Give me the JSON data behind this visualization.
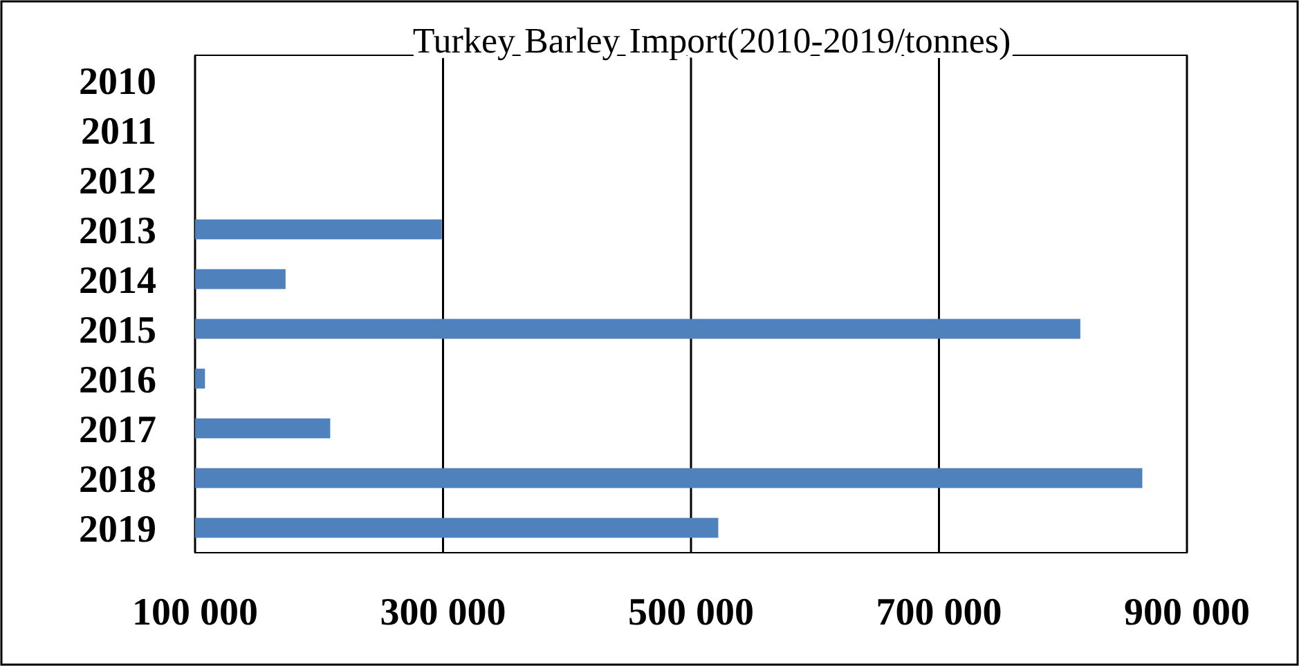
{
  "chart_data": {
    "type": "bar",
    "orientation": "horizontal",
    "title": "Turkey Barley Import(2010-2019/tonnes)",
    "categories": [
      "2010",
      "2011",
      "2012",
      "2013",
      "2014",
      "2015",
      "2016",
      "2017",
      "2018",
      "2019"
    ],
    "values": [
      null,
      null,
      null,
      299000,
      173000,
      814000,
      108000,
      209000,
      864000,
      522000
    ],
    "color": "#4f81bd",
    "xlim": [
      100000,
      900000
    ],
    "xticks": [
      {
        "value": 100000,
        "label": "100 000"
      },
      {
        "value": 300000,
        "label": "300 000"
      },
      {
        "value": 500000,
        "label": "500 000"
      },
      {
        "value": 700000,
        "label": "700 000"
      },
      {
        "value": 900000,
        "label": "900 000"
      }
    ],
    "grid": "x"
  }
}
